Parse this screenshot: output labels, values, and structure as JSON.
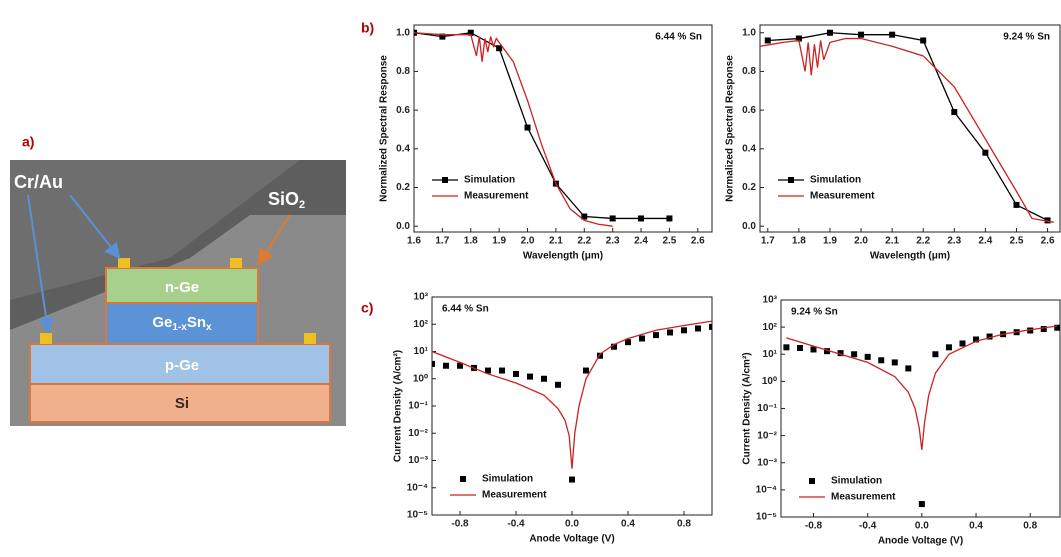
{
  "panel_labels": [
    "a)",
    "b)",
    "c)"
  ],
  "device": {
    "cr_au": "Cr/Au",
    "sio2": [
      "SiO",
      "2"
    ],
    "n_ge": "n-Ge",
    "gesn": [
      "Ge",
      "1-x",
      "Sn",
      "x"
    ],
    "p_ge": "p-Ge",
    "si": "Si"
  },
  "chart_data": [
    {
      "type": "line",
      "annotation": "6.44 % Sn",
      "x_label": "Wavelength (μm)",
      "y_label": "Normalized Spectral Response",
      "xlim": [
        1.6,
        2.65
      ],
      "ylim": [
        -0.03,
        1.04
      ],
      "xticks": [
        1.6,
        1.7,
        1.8,
        1.9,
        {
          "value": 2,
          "label": "2.0"
        },
        2.1,
        2.2,
        2.3,
        2.4,
        2.5,
        2.6
      ],
      "yticks": [
        {
          "value": 0,
          "label": "0.0"
        },
        0.2,
        0.4,
        0.6,
        0.8,
        {
          "value": 1,
          "label": "1.0"
        }
      ],
      "legend": "lower left",
      "series": [
        {
          "name": "Simulation",
          "color": "#000000",
          "style": "line-marker",
          "x": [
            1.6,
            1.7,
            1.8,
            1.9,
            2.0,
            2.1,
            2.2,
            2.3,
            2.4,
            2.5
          ],
          "values": [
            1.0,
            0.98,
            1.0,
            0.92,
            0.51,
            0.22,
            0.05,
            0.04,
            0.04,
            0.04
          ]
        },
        {
          "name": "Measurement",
          "color": "#cc2222",
          "style": "line",
          "x": [
            1.6,
            1.7,
            1.8,
            1.82,
            1.83,
            1.84,
            1.85,
            1.86,
            1.87,
            1.88,
            1.89,
            1.9,
            1.95,
            2.0,
            2.05,
            2.1,
            2.15,
            2.2,
            2.25,
            2.3
          ],
          "values": [
            1.0,
            0.99,
            0.99,
            0.88,
            0.98,
            0.85,
            0.97,
            0.9,
            0.98,
            0.93,
            0.97,
            0.95,
            0.85,
            0.65,
            0.42,
            0.22,
            0.09,
            0.03,
            0.01,
            0.0
          ]
        }
      ]
    },
    {
      "type": "line",
      "annotation": "9.24 % Sn",
      "x_label": "Wavelength (μm)",
      "y_label": "Normalized Spectral Response",
      "xlim": [
        1.675,
        2.64
      ],
      "ylim": [
        -0.03,
        1.04
      ],
      "xticks": [
        1.7,
        1.8,
        1.9,
        {
          "value": 2,
          "label": "2.0"
        },
        2.1,
        2.2,
        2.3,
        2.4,
        2.5,
        2.6
      ],
      "yticks": [
        {
          "value": 0,
          "label": "0.0"
        },
        0.2,
        0.4,
        0.6,
        0.8,
        {
          "value": 1,
          "label": "1.0"
        }
      ],
      "legend": "lower left",
      "series": [
        {
          "name": "Simulation",
          "color": "#000000",
          "style": "line-marker",
          "x": [
            1.7,
            1.8,
            1.9,
            2.0,
            2.1,
            2.2,
            2.3,
            2.4,
            2.5,
            2.6
          ],
          "values": [
            0.96,
            0.97,
            1.0,
            0.99,
            0.99,
            0.96,
            0.59,
            0.38,
            0.11,
            0.03
          ]
        },
        {
          "name": "Measurement",
          "color": "#cc2222",
          "style": "line",
          "x": [
            1.675,
            1.75,
            1.8,
            1.82,
            1.83,
            1.84,
            1.85,
            1.86,
            1.87,
            1.88,
            1.9,
            1.95,
            2.0,
            2.1,
            2.2,
            2.3,
            2.4,
            2.5,
            2.55,
            2.62
          ],
          "values": [
            0.93,
            0.95,
            0.96,
            0.8,
            0.95,
            0.78,
            0.94,
            0.82,
            0.96,
            0.86,
            0.95,
            0.97,
            0.97,
            0.93,
            0.88,
            0.72,
            0.45,
            0.18,
            0.04,
            0.02
          ]
        }
      ]
    },
    {
      "type": "line",
      "yscale": "log",
      "annotation": "6.44 % Sn",
      "x_label": "Anode Voltage (V)",
      "y_label": "Current Density (A/cm²)",
      "xlim": [
        -1,
        1
      ],
      "ylim": [
        1e-05,
        1000
      ],
      "xticks": [
        -0.8,
        -0.4,
        {
          "value": 0,
          "label": "0.0"
        },
        0.4,
        0.8
      ],
      "yticks": [
        {
          "value": 1e-05,
          "label": "10⁻⁵"
        },
        {
          "value": 0.0001,
          "label": "10⁻⁴"
        },
        {
          "value": 0.001,
          "label": "10⁻³"
        },
        {
          "value": 0.01,
          "label": "10⁻²"
        },
        {
          "value": 0.1,
          "label": "10⁻¹"
        },
        {
          "value": 1,
          "label": "10⁰"
        },
        {
          "value": 10,
          "label": "10¹"
        },
        {
          "value": 100,
          "label": "10²"
        },
        {
          "value": 1000,
          "label": "10³"
        }
      ],
      "legend": "lower left",
      "series": [
        {
          "name": "Simulation",
          "color": "#000000",
          "style": "marker",
          "x": [
            -1,
            -0.9,
            -0.8,
            -0.7,
            -0.6,
            -0.5,
            -0.4,
            -0.3,
            -0.2,
            -0.1,
            0,
            0.1,
            0.2,
            0.3,
            0.4,
            0.5,
            0.6,
            0.7,
            0.8,
            0.9,
            1.0
          ],
          "values": [
            3.5,
            3,
            3,
            2.5,
            2,
            2,
            1.5,
            1.2,
            1,
            0.6,
            0.0002,
            2,
            7,
            15,
            22,
            30,
            40,
            50,
            60,
            70,
            80
          ]
        },
        {
          "name": "Measurement",
          "color": "#cc2222",
          "style": "line",
          "x": [
            -1,
            -0.8,
            -0.6,
            -0.4,
            -0.2,
            -0.1,
            -0.05,
            -0.02,
            0,
            0.02,
            0.05,
            0.1,
            0.2,
            0.3,
            0.4,
            0.6,
            0.8,
            1.0
          ],
          "values": [
            10,
            4,
            1.5,
            0.7,
            0.25,
            0.08,
            0.03,
            0.008,
            0.0005,
            0.01,
            0.1,
            1,
            8,
            18,
            30,
            60,
            90,
            130
          ]
        }
      ]
    },
    {
      "type": "line",
      "yscale": "log",
      "annotation": "9.24 % Sn",
      "x_label": "Anode Voltage (V)",
      "y_label": "Current Density (A/cm²)",
      "xlim": [
        -1.04,
        1.02
      ],
      "ylim": [
        1e-05,
        1000
      ],
      "xticks": [
        -0.8,
        -0.4,
        {
          "value": 0,
          "label": "0.0"
        },
        0.4,
        0.8
      ],
      "yticks": [
        {
          "value": 1e-05,
          "label": "10⁻⁵"
        },
        {
          "value": 0.0001,
          "label": "10⁻⁴"
        },
        {
          "value": 0.001,
          "label": "10⁻³"
        },
        {
          "value": 0.01,
          "label": "10⁻²"
        },
        {
          "value": 0.1,
          "label": "10⁻¹"
        },
        {
          "value": 1,
          "label": "10⁰"
        },
        {
          "value": 10,
          "label": "10¹"
        },
        {
          "value": 100,
          "label": "10²"
        },
        {
          "value": 1000,
          "label": "10³"
        }
      ],
      "legend": "lower left",
      "series": [
        {
          "name": "Simulation",
          "color": "#000000",
          "style": "marker",
          "x": [
            -1,
            -0.9,
            -0.8,
            -0.7,
            -0.6,
            -0.5,
            -0.4,
            -0.3,
            -0.2,
            -0.1,
            0,
            0.1,
            0.2,
            0.3,
            0.4,
            0.5,
            0.6,
            0.7,
            0.8,
            0.9,
            1.0
          ],
          "values": [
            18,
            17,
            15,
            13,
            11,
            10,
            8,
            6,
            5,
            3,
            3e-05,
            10,
            18,
            25,
            35,
            45,
            55,
            65,
            75,
            85,
            95
          ]
        },
        {
          "name": "Measurement",
          "color": "#cc2222",
          "style": "line",
          "x": [
            -1,
            -0.8,
            -0.6,
            -0.4,
            -0.2,
            -0.1,
            -0.05,
            -0.02,
            0,
            0.02,
            0.05,
            0.1,
            0.2,
            0.4,
            0.6,
            0.8,
            1.0
          ],
          "values": [
            40,
            20,
            10,
            5,
            1.5,
            0.4,
            0.1,
            0.02,
            0.003,
            0.03,
            0.3,
            2,
            10,
            30,
            55,
            80,
            110
          ]
        }
      ]
    }
  ]
}
